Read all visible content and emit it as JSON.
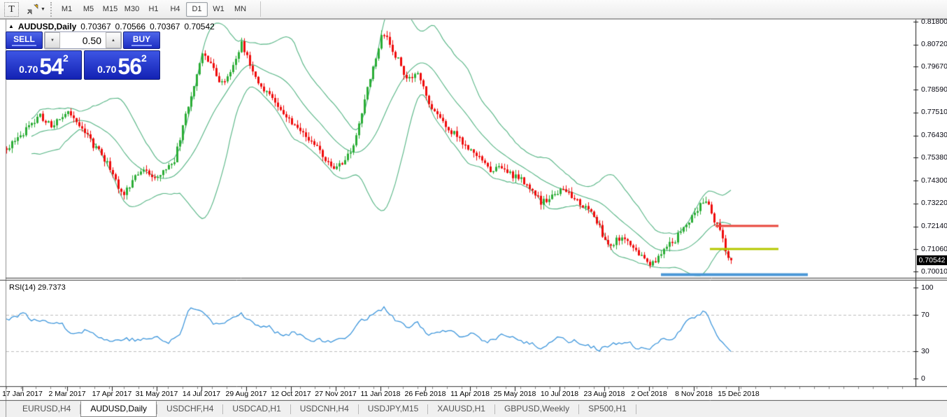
{
  "toolbar": {
    "text_tool_label": "T",
    "timeframes": [
      "M1",
      "M5",
      "M15",
      "M30",
      "H1",
      "H4",
      "D1",
      "W1",
      "MN"
    ],
    "active_timeframe": "D1"
  },
  "icons": {
    "collapse_triangle": "▲",
    "caret_down": "▼",
    "stepper_up": "▲",
    "stepper_down": "▼"
  },
  "chart": {
    "title": {
      "symbol": "AUDUSD,Daily",
      "open": "0.70367",
      "high": "0.70566",
      "low": "0.70367",
      "close": "0.70542"
    },
    "trade_panel": {
      "sell_label": "SELL",
      "buy_label": "BUY",
      "volume": "0.50",
      "sell_price": {
        "prefix": "0.70",
        "big": "54",
        "sup": "2"
      },
      "buy_price": {
        "prefix": "0.70",
        "big": "56",
        "sup": "2"
      }
    },
    "price_axis": {
      "current": "0.70542"
    },
    "rsi_label": "RSI(14) 29.7373"
  },
  "tabs": [
    {
      "label": "EURUSD,H4",
      "active": false
    },
    {
      "label": "AUDUSD,Daily",
      "active": true
    },
    {
      "label": "USDCHF,H4",
      "active": false
    },
    {
      "label": "USDCAD,H1",
      "active": false
    },
    {
      "label": "USDCNH,H4",
      "active": false
    },
    {
      "label": "USDJPY,M15",
      "active": false
    },
    {
      "label": "XAUUSD,H1",
      "active": false
    },
    {
      "label": "GBPUSD,Weekly",
      "active": false
    },
    {
      "label": "SP500,H1",
      "active": false
    }
  ],
  "chart_data": [
    {
      "type": "candlestick",
      "symbol": "AUDUSD",
      "timeframe": "Daily",
      "indicator": "Bollinger Bands (20,2)",
      "ohlc": {
        "open": 0.70367,
        "high": 0.70566,
        "low": 0.70367,
        "close": 0.70542
      },
      "current_price": 0.70542,
      "y_ticks": [
        0.818,
        0.8072,
        0.7967,
        0.7859,
        0.7751,
        0.7643,
        0.7538,
        0.743,
        0.7322,
        0.7214,
        0.7106,
        0.7001
      ],
      "y_range": [
        0.697,
        0.819
      ],
      "x_labels": [
        "17 Jan 2017",
        "2 Mar 2017",
        "17 Apr 2017",
        "31 May 2017",
        "14 Jul 2017",
        "29 Aug 2017",
        "12 Oct 2017",
        "27 Nov 2017",
        "11 Jan 2018",
        "26 Feb 2018",
        "11 Apr 2018",
        "25 May 2018",
        "10 Jul 2018",
        "23 Aug 2018",
        "2 Oct 2018",
        "8 Nov 2018",
        "15 Dec 2018"
      ],
      "grid": false,
      "up_color": "#2bad36",
      "down_color": "#ef0b0b",
      "band_color": "#55b584",
      "close_anchors": [
        [
          9,
          0.759
        ],
        [
          30,
          0.764
        ],
        [
          55,
          0.774
        ],
        [
          75,
          0.768
        ],
        [
          95,
          0.7765
        ],
        [
          110,
          0.771
        ],
        [
          130,
          0.761
        ],
        [
          150,
          0.7526
        ],
        [
          162,
          0.746
        ],
        [
          175,
          0.736
        ],
        [
          190,
          0.744
        ],
        [
          205,
          0.749
        ],
        [
          220,
          0.7433
        ],
        [
          235,
          0.7476
        ],
        [
          250,
          0.7533
        ],
        [
          262,
          0.7709
        ],
        [
          275,
          0.7858
        ],
        [
          290,
          0.8041
        ],
        [
          300,
          0.7974
        ],
        [
          315,
          0.7891
        ],
        [
          330,
          0.7941
        ],
        [
          345,
          0.809
        ],
        [
          355,
          0.7991
        ],
        [
          370,
          0.7891
        ],
        [
          385,
          0.7841
        ],
        [
          400,
          0.7758
        ],
        [
          415,
          0.7719
        ],
        [
          430,
          0.7659
        ],
        [
          445,
          0.7626
        ],
        [
          460,
          0.7543
        ],
        [
          475,
          0.7493
        ],
        [
          490,
          0.7519
        ],
        [
          505,
          0.7592
        ],
        [
          520,
          0.7792
        ],
        [
          535,
          0.8007
        ],
        [
          548,
          0.813
        ],
        [
          560,
          0.8057
        ],
        [
          572,
          0.7974
        ],
        [
          585,
          0.7908
        ],
        [
          598,
          0.7931
        ],
        [
          612,
          0.7792
        ],
        [
          625,
          0.7742
        ],
        [
          640,
          0.7675
        ],
        [
          655,
          0.7642
        ],
        [
          670,
          0.7576
        ],
        [
          685,
          0.7543
        ],
        [
          700,
          0.7476
        ],
        [
          715,
          0.7493
        ],
        [
          730,
          0.7466
        ],
        [
          745,
          0.7443
        ],
        [
          760,
          0.7377
        ],
        [
          775,
          0.7327
        ],
        [
          790,
          0.735
        ],
        [
          805,
          0.7387
        ],
        [
          820,
          0.7343
        ],
        [
          835,
          0.731
        ],
        [
          850,
          0.726
        ],
        [
          862,
          0.7161
        ],
        [
          875,
          0.7128
        ],
        [
          888,
          0.7167
        ],
        [
          900,
          0.7121
        ],
        [
          915,
          0.7078
        ],
        [
          928,
          0.7035
        ],
        [
          940,
          0.7061
        ],
        [
          955,
          0.7121
        ],
        [
          968,
          0.7161
        ],
        [
          980,
          0.7227
        ],
        [
          995,
          0.7277
        ],
        [
          1008,
          0.7343
        ],
        [
          1020,
          0.726
        ],
        [
          1032,
          0.7161
        ],
        [
          1040,
          0.7078
        ],
        [
          1045,
          0.7042
        ]
      ],
      "hlines": [
        {
          "price": 0.7216,
          "x1": 1023,
          "x2": 1113,
          "color": "#e8463c",
          "width": 3
        },
        {
          "price": 0.7107,
          "x1": 1015,
          "x2": 1113,
          "color": "#b4c800",
          "width": 3
        },
        {
          "price": 0.6986,
          "x1": 945,
          "x2": 1155,
          "color": "#4a97d6",
          "width": 4
        }
      ]
    },
    {
      "type": "line",
      "name": "RSI(14)",
      "current_value": 29.7373,
      "levels": [
        70,
        30
      ],
      "y_ticks": [
        100,
        70,
        30,
        0
      ],
      "color": "#3d96dc",
      "anchors": [
        [
          9,
          66
        ],
        [
          30,
          71
        ],
        [
          55,
          62
        ],
        [
          80,
          65
        ],
        [
          100,
          52
        ],
        [
          120,
          55
        ],
        [
          140,
          47
        ],
        [
          160,
          40
        ],
        [
          180,
          46
        ],
        [
          200,
          41
        ],
        [
          220,
          46
        ],
        [
          240,
          39
        ],
        [
          258,
          50
        ],
        [
          270,
          76
        ],
        [
          290,
          74
        ],
        [
          305,
          60
        ],
        [
          320,
          65
        ],
        [
          345,
          73
        ],
        [
          365,
          58
        ],
        [
          385,
          55
        ],
        [
          400,
          50
        ],
        [
          420,
          52
        ],
        [
          440,
          46
        ],
        [
          460,
          42
        ],
        [
          475,
          38
        ],
        [
          495,
          48
        ],
        [
          515,
          62
        ],
        [
          535,
          72
        ],
        [
          548,
          79
        ],
        [
          565,
          65
        ],
        [
          580,
          55
        ],
        [
          598,
          60
        ],
        [
          615,
          48
        ],
        [
          635,
          52
        ],
        [
          655,
          45
        ],
        [
          675,
          48
        ],
        [
          695,
          40
        ],
        [
          715,
          48
        ],
        [
          735,
          44
        ],
        [
          755,
          38
        ],
        [
          775,
          35
        ],
        [
          795,
          45
        ],
        [
          815,
          42
        ],
        [
          835,
          40
        ],
        [
          855,
          33
        ],
        [
          875,
          36
        ],
        [
          895,
          38
        ],
        [
          915,
          33
        ],
        [
          928,
          30
        ],
        [
          945,
          40
        ],
        [
          960,
          45
        ],
        [
          980,
          62
        ],
        [
          1000,
          70
        ],
        [
          1008,
          74
        ],
        [
          1020,
          55
        ],
        [
          1032,
          42
        ],
        [
          1045,
          29.74
        ]
      ]
    }
  ]
}
